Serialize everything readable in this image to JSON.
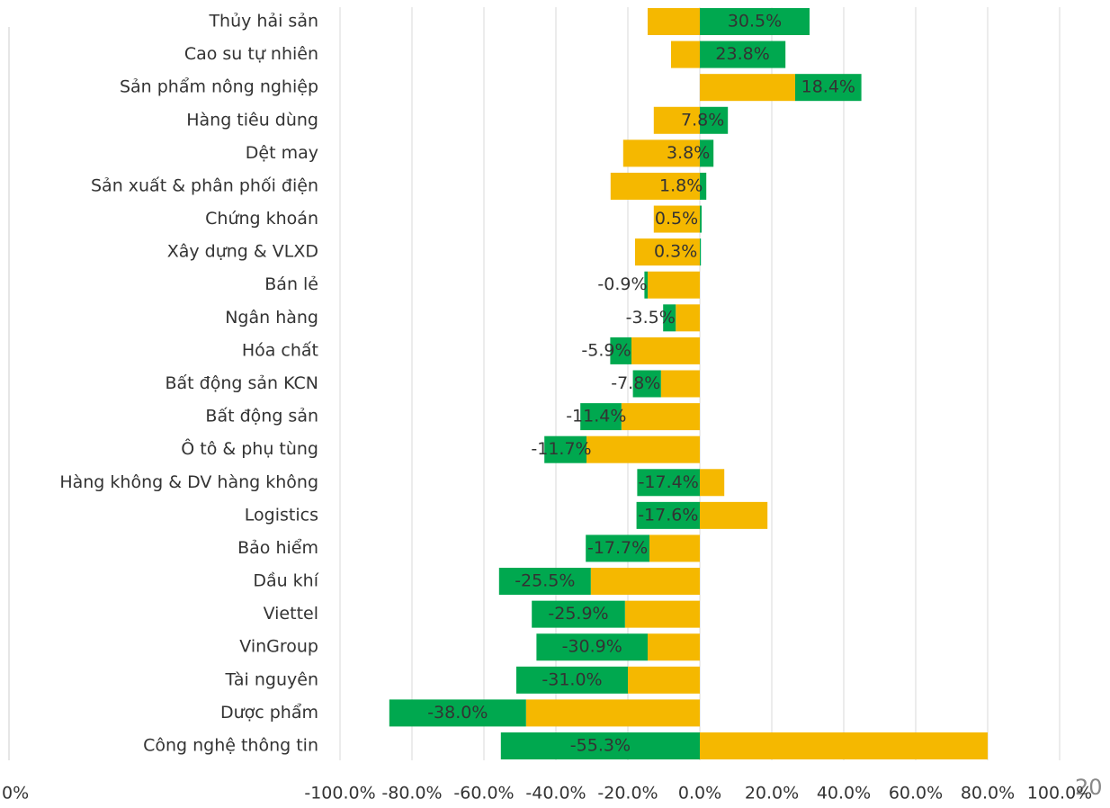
{
  "chart_data": {
    "type": "stacked_barh",
    "categories": [
      "Thủy hải sản",
      "Cao su tự nhiên",
      "Sản phẩm nông nghiệp",
      "Hàng tiêu dùng",
      "Dệt may",
      "Sản xuất & phân phối điện",
      "Chứng khoán",
      "Xây dựng & VLXD",
      "Bán lẻ",
      "Ngân hàng",
      "Hóa chất",
      "Bất động sản KCN",
      "Bất động sản",
      "Ô tô & phụ tùng",
      "Hàng không & DV hàng không",
      "Logistics",
      "Bảo hiểm",
      "Dầu khí",
      "Viettel",
      "VinGroup",
      "Tài nguyên",
      "Dược phẩm",
      "Công nghệ thông tin"
    ],
    "series": [
      {
        "color": "#f5b800",
        "values": [
          -14.5,
          -8,
          26.5,
          -12.8,
          -21.3,
          -24.8,
          -12.8,
          -18,
          -14.5,
          -6.7,
          -19,
          -10.8,
          -21.8,
          -31.5,
          6.8,
          18.8,
          -14,
          -30.3,
          -20.8,
          -14.5,
          -20,
          -48.3,
          80
        ]
      },
      {
        "color": "#00a84f",
        "values": [
          30.5,
          23.8,
          18.4,
          7.8,
          3.8,
          1.8,
          0.5,
          0.3,
          -0.9,
          -3.5,
          -5.9,
          -7.8,
          -11.4,
          -11.7,
          -17.4,
          -17.6,
          -17.7,
          -25.5,
          -25.9,
          -30.9,
          -31.0,
          -38.0,
          -55.3
        ],
        "value_labels": [
          "30.5%",
          "23.8%",
          "18.4%",
          "7.8%",
          "3.8%",
          "1.8%",
          "0.5%",
          "0.3%",
          "-0.9%",
          "-3.5%",
          "-5.9%",
          "-7.8%",
          "-11.4%",
          "-11.7%",
          "-17.4%",
          "-17.6%",
          "-17.7%",
          "-25.5%",
          "-25.9%",
          "-30.9%",
          "-31.0%",
          "-38.0%",
          "-55.3%"
        ]
      }
    ],
    "xlim": [
      -100,
      100
    ],
    "xticks": [
      {
        "value": -100,
        "label": "-100.0%"
      },
      {
        "value": -80,
        "label": "-80.0%"
      },
      {
        "value": -60,
        "label": "-60.0%"
      },
      {
        "value": -40,
        "label": "-40.0%"
      },
      {
        "value": -20,
        "label": "-20.0%"
      },
      {
        "value": 0,
        "label": "0.0%"
      },
      {
        "value": 20,
        "label": "20.0%"
      },
      {
        "value": 40,
        "label": "40.0%"
      },
      {
        "value": 60,
        "label": "60.0%"
      },
      {
        "value": 80,
        "label": "80.0%"
      },
      {
        "value": 100,
        "label": "100.0%"
      }
    ],
    "grid": true
  },
  "page_number": "20",
  "fragment_label": ".0%"
}
